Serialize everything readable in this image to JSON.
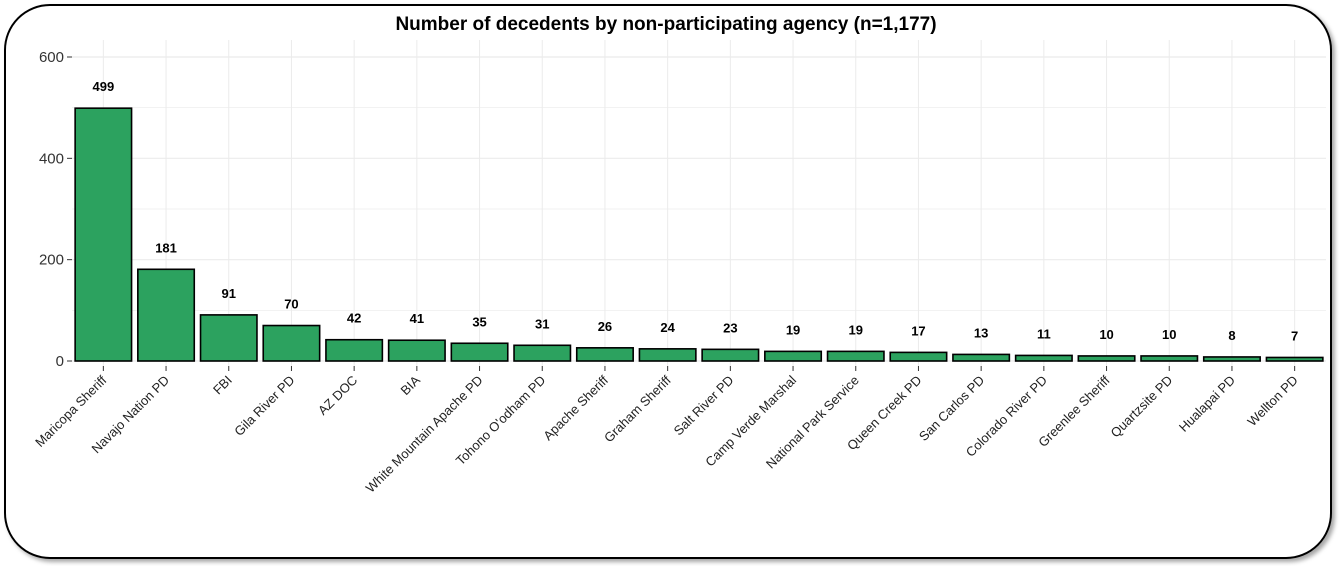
{
  "chart_data": {
    "type": "bar",
    "title": "Number of decedents by non-participating agency (n=1,177)",
    "xlabel": "",
    "ylabel": "",
    "ylim": [
      0,
      620
    ],
    "yticks": [
      0,
      200,
      400,
      600
    ],
    "grid": true,
    "categories": [
      "Maricopa Sheriff",
      "Navajo Nation PD",
      "FBI",
      "Gila River PD",
      "AZ DOC",
      "BIA",
      "White Mountain Apache PD",
      "Tohono O'odham PD",
      "Apache Sheriff",
      "Graham Sheriff",
      "Salt River PD",
      "Camp Verde Marshal",
      "National Park Service",
      "Queen Creek PD",
      "San Carlos PD",
      "Colorado River PD",
      "Greenlee Sheriff",
      "Quartzsite PD",
      "Hualapai PD",
      "Wellton PD"
    ],
    "values": [
      499,
      181,
      91,
      70,
      42,
      41,
      35,
      31,
      26,
      24,
      23,
      19,
      19,
      17,
      13,
      11,
      10,
      10,
      8,
      7
    ],
    "colors": {
      "bar": "#2ca25f",
      "outline": "#000000",
      "grid": "#ebebeb"
    }
  }
}
